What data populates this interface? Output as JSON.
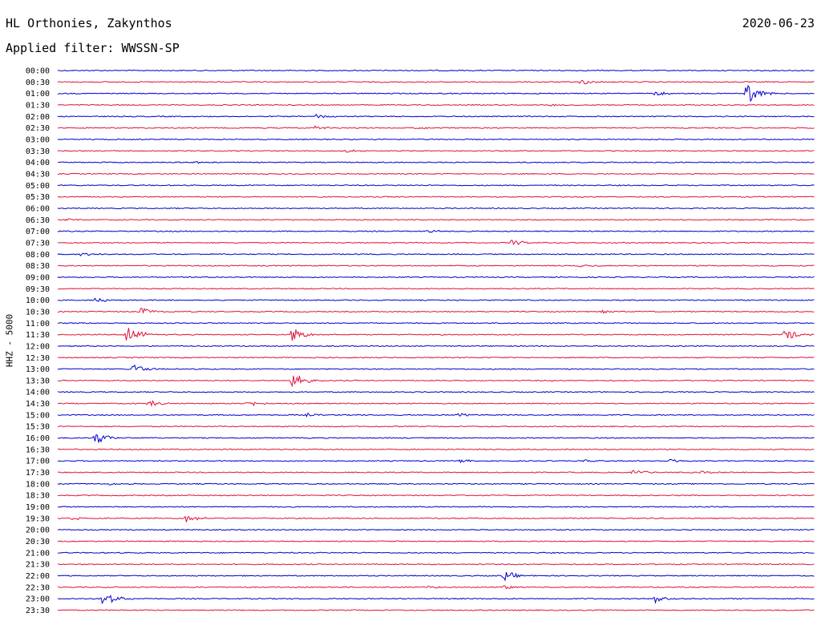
{
  "header": {
    "station": "HL Orthonies, Zakynthos",
    "filter": "Applied filter: WWSSN-SP",
    "date": "2020-06-23"
  },
  "channel_label": "HHZ - 5000",
  "colors": {
    "odd": "#0000cc",
    "even": "#e0143c"
  },
  "chart_data": {
    "type": "line",
    "title": "HL Orthonies, Zakynthos",
    "subtitle": "Applied filter: WWSSN-SP",
    "ylabel": "HHZ - 5000",
    "row_labels": [
      "00:00",
      "00:30",
      "01:00",
      "01:30",
      "02:00",
      "02:30",
      "03:00",
      "03:30",
      "04:00",
      "04:30",
      "05:00",
      "05:30",
      "06:00",
      "06:30",
      "07:00",
      "07:30",
      "08:00",
      "08:30",
      "09:00",
      "09:30",
      "10:00",
      "10:30",
      "11:00",
      "11:30",
      "12:00",
      "12:30",
      "13:00",
      "13:30",
      "14:00",
      "14:30",
      "15:00",
      "15:30",
      "16:00",
      "16:30",
      "17:00",
      "17:30",
      "18:00",
      "18:30",
      "19:00",
      "19:30",
      "20:00",
      "20:30",
      "21:00",
      "21:30",
      "22:00",
      "22:30",
      "23:00",
      "23:30"
    ],
    "row_minutes": 30,
    "events": [
      {
        "row": 1,
        "t": 0.69,
        "amp": 4
      },
      {
        "row": 2,
        "t": 0.79,
        "amp": 3
      },
      {
        "row": 2,
        "t": 0.91,
        "amp": 14
      },
      {
        "row": 3,
        "t": 0.65,
        "amp": 2
      },
      {
        "row": 4,
        "t": 0.34,
        "amp": 3
      },
      {
        "row": 5,
        "t": 0.34,
        "amp": 3
      },
      {
        "row": 5,
        "t": 0.47,
        "amp": 2
      },
      {
        "row": 7,
        "t": 0.38,
        "amp": 2
      },
      {
        "row": 8,
        "t": 0.18,
        "amp": 2
      },
      {
        "row": 13,
        "t": 0.01,
        "amp": 2
      },
      {
        "row": 14,
        "t": 0.49,
        "amp": 2
      },
      {
        "row": 15,
        "t": 0.6,
        "amp": 4
      },
      {
        "row": 16,
        "t": 0.03,
        "amp": 3
      },
      {
        "row": 17,
        "t": 0.69,
        "amp": 2
      },
      {
        "row": 20,
        "t": 0.05,
        "amp": 3
      },
      {
        "row": 21,
        "t": 0.11,
        "amp": 6
      },
      {
        "row": 21,
        "t": 0.72,
        "amp": 2
      },
      {
        "row": 23,
        "t": 0.09,
        "amp": 16
      },
      {
        "row": 23,
        "t": 0.31,
        "amp": 10
      },
      {
        "row": 23,
        "t": 0.96,
        "amp": 9
      },
      {
        "row": 26,
        "t": 0.1,
        "amp": 7
      },
      {
        "row": 27,
        "t": 0.31,
        "amp": 12
      },
      {
        "row": 29,
        "t": 0.12,
        "amp": 5
      },
      {
        "row": 29,
        "t": 0.25,
        "amp": 5
      },
      {
        "row": 30,
        "t": 0.33,
        "amp": 2
      },
      {
        "row": 30,
        "t": 0.53,
        "amp": 3
      },
      {
        "row": 32,
        "t": 0.05,
        "amp": 9
      },
      {
        "row": 34,
        "t": 0.53,
        "amp": 2
      },
      {
        "row": 34,
        "t": 0.69,
        "amp": 2
      },
      {
        "row": 34,
        "t": 0.81,
        "amp": 3
      },
      {
        "row": 35,
        "t": 0.76,
        "amp": 4
      },
      {
        "row": 35,
        "t": 0.85,
        "amp": 2
      },
      {
        "row": 36,
        "t": 0.07,
        "amp": 2
      },
      {
        "row": 39,
        "t": 0.17,
        "amp": 5
      },
      {
        "row": 39,
        "t": 0.02,
        "amp": 2
      },
      {
        "row": 44,
        "t": 0.59,
        "amp": 7
      },
      {
        "row": 45,
        "t": 0.49,
        "amp": 2
      },
      {
        "row": 45,
        "t": 0.59,
        "amp": 3
      },
      {
        "row": 46,
        "t": 0.06,
        "amp": 12
      },
      {
        "row": 46,
        "t": 0.79,
        "amp": 6
      }
    ]
  }
}
